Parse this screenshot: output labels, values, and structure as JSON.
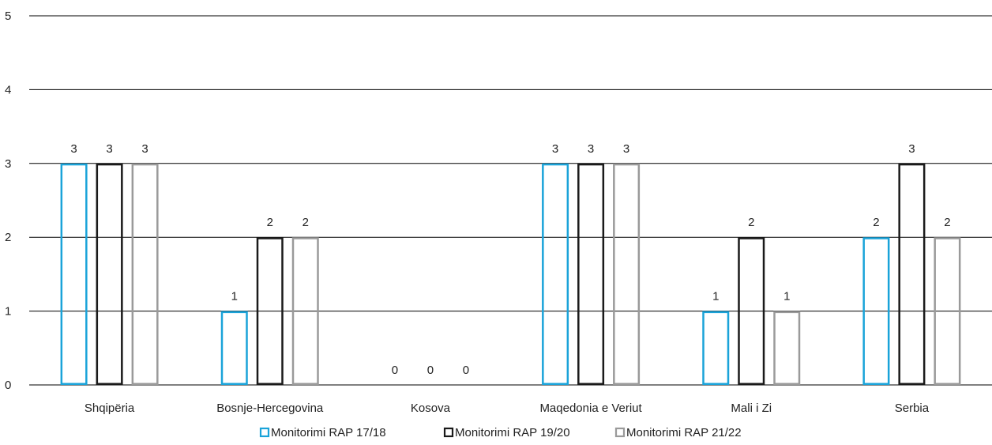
{
  "chart_data": {
    "type": "bar",
    "categories": [
      "Shqipëria",
      "Bosnje-Hercegovina",
      "Kosova",
      "Maqedonia e Veriut",
      "Mali i Zi",
      "Serbia"
    ],
    "series": [
      {
        "name": "Monitorimi RAP 17/18",
        "color": "#1aa3d9",
        "values": [
          3,
          1,
          0,
          3,
          1,
          2
        ]
      },
      {
        "name": "Monitorimi RAP 19/20",
        "color": "#1a1a1a",
        "values": [
          3,
          2,
          0,
          3,
          2,
          3
        ]
      },
      {
        "name": "Monitorimi RAP 21/22",
        "color": "#9a9a9a",
        "values": [
          3,
          2,
          0,
          3,
          1,
          2
        ]
      }
    ],
    "y_ticks": [
      "0",
      "1",
      "2",
      "3",
      "4",
      "5"
    ],
    "ylim": [
      0,
      5
    ],
    "grid": true,
    "legend": "bottom-center",
    "bar_style": "outline"
  }
}
